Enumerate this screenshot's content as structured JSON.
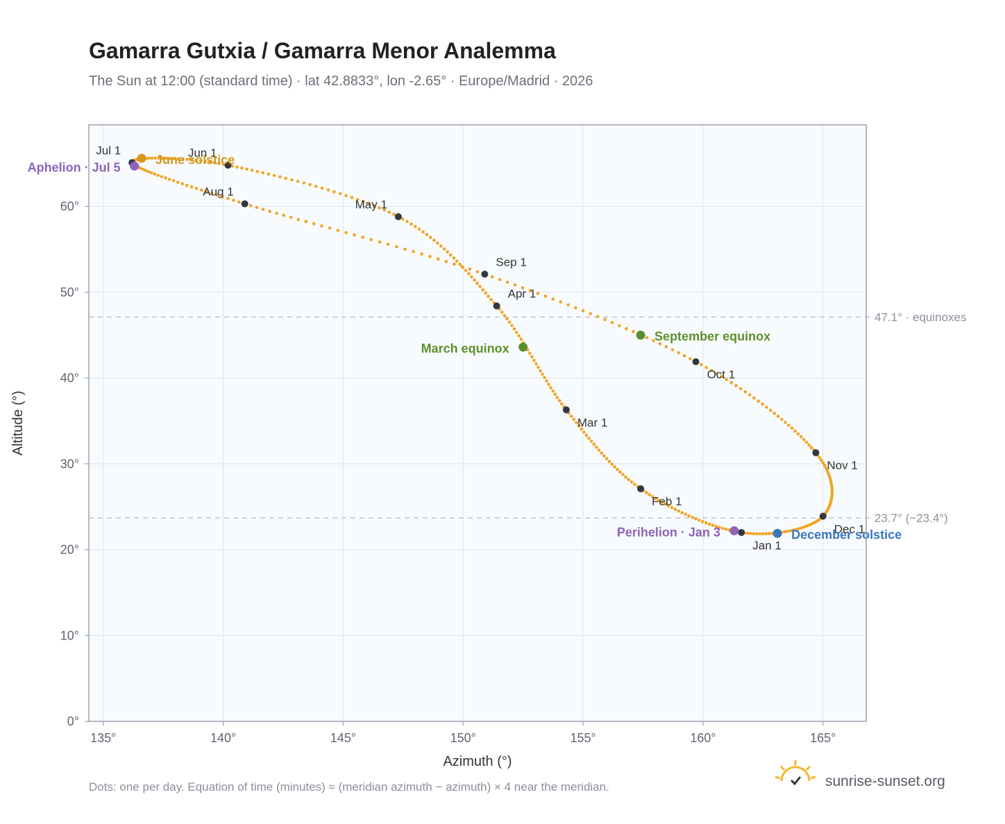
{
  "header": {
    "title": "Gamarra Gutxia / Gamarra Menor Analemma",
    "subtitle": "The Sun at 12:00 (standard time) · lat 42.8833°, lon -2.65° · Europe/Madrid · 2026"
  },
  "footer": {
    "note": "Dots: one per day. Equation of time (minutes) ≈ (meridian azimuth − azimuth) × 4 near the meridian.",
    "brand": "sunrise-sunset.org",
    "brand_icon": "sun-logo-icon"
  },
  "colors": {
    "curve": "#f2a427",
    "month_dot": "#333840",
    "june_solstice": "#d3981e",
    "december_solstice": "#3b78c0",
    "equinox": "#5b8f2e",
    "apsis": "#8e63b8",
    "reference_line": "#c3c8cf",
    "plot_bg": "#f8fbfd",
    "grid": "#e3e8ee",
    "frame": "#9aa3ae"
  },
  "chart_data": {
    "type": "scatter",
    "xlabel": "Azimuth (°)",
    "ylabel": "Altitude (°)",
    "xlim": [
      134.4,
      166.8
    ],
    "ylim": [
      0,
      69.5
    ],
    "x_ticks": [
      135,
      140,
      145,
      150,
      155,
      160,
      165
    ],
    "x_tick_labels": [
      "135°",
      "140°",
      "145°",
      "150°",
      "155°",
      "160°",
      "165°"
    ],
    "y_ticks": [
      0,
      10,
      20,
      30,
      40,
      50,
      60
    ],
    "y_tick_labels": [
      "0°",
      "10°",
      "20°",
      "30°",
      "40°",
      "50°",
      "60°"
    ],
    "grid": true,
    "analemma_anchors": [
      {
        "az": 161.6,
        "alt": 22.0
      },
      {
        "az": 157.4,
        "alt": 27.1
      },
      {
        "az": 154.3,
        "alt": 36.3
      },
      {
        "az": 151.4,
        "alt": 48.4
      },
      {
        "az": 147.3,
        "alt": 58.8
      },
      {
        "az": 140.2,
        "alt": 64.8
      },
      {
        "az": 136.2,
        "alt": 65.1
      },
      {
        "az": 140.9,
        "alt": 60.3
      },
      {
        "az": 150.9,
        "alt": 52.1
      },
      {
        "az": 159.7,
        "alt": 41.9
      },
      {
        "az": 164.7,
        "alt": 31.3
      },
      {
        "az": 165.0,
        "alt": 23.9
      },
      {
        "az": 161.6,
        "alt": 22.0
      }
    ],
    "month_markers": [
      {
        "label": "Jan 1",
        "az": 161.6,
        "alt": 22.0
      },
      {
        "label": "Feb 1",
        "az": 157.4,
        "alt": 27.1
      },
      {
        "label": "Mar 1",
        "az": 154.3,
        "alt": 36.3
      },
      {
        "label": "Apr 1",
        "az": 151.4,
        "alt": 48.4
      },
      {
        "label": "May 1",
        "az": 147.3,
        "alt": 58.8
      },
      {
        "label": "Jun 1",
        "az": 140.2,
        "alt": 64.8
      },
      {
        "label": "Jul 1",
        "az": 136.2,
        "alt": 65.1
      },
      {
        "label": "Aug 1",
        "az": 140.9,
        "alt": 60.3
      },
      {
        "label": "Sep 1",
        "az": 150.9,
        "alt": 52.1
      },
      {
        "label": "Oct 1",
        "az": 159.7,
        "alt": 41.9
      },
      {
        "label": "Nov 1",
        "az": 164.7,
        "alt": 31.3
      },
      {
        "label": "Dec 1",
        "az": 165.0,
        "alt": 23.9
      }
    ],
    "events": [
      {
        "label": "June solstice",
        "az": 136.6,
        "alt": 65.6,
        "color_key": "june_solstice"
      },
      {
        "label": "Aphelion · Jul 5",
        "az": 136.3,
        "alt": 64.7,
        "color_key": "apsis"
      },
      {
        "label": "March equinox",
        "az": 152.5,
        "alt": 43.6,
        "color_key": "equinox"
      },
      {
        "label": "September equinox",
        "az": 157.4,
        "alt": 45.0,
        "color_key": "equinox"
      },
      {
        "label": "Perihelion · Jan 3",
        "az": 161.3,
        "alt": 22.2,
        "color_key": "apsis"
      },
      {
        "label": "December solstice",
        "az": 163.1,
        "alt": 21.9,
        "color_key": "december_solstice"
      }
    ],
    "reference_lines": [
      {
        "alt": 47.1,
        "label": "47.1° · equinoxes"
      },
      {
        "alt": 23.7,
        "label": "23.7° (−23.4°)"
      }
    ]
  }
}
